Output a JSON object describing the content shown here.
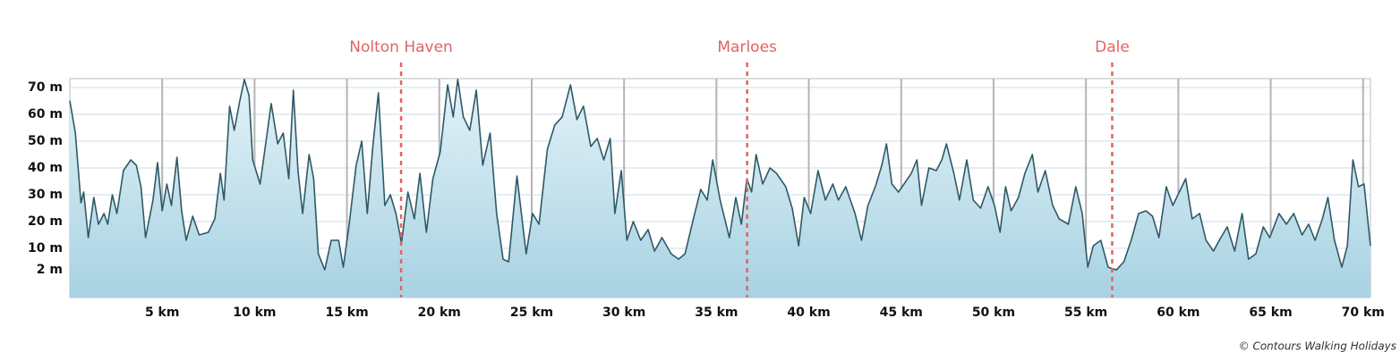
{
  "chart_data": {
    "type": "area",
    "series": [
      {
        "color": "#2f5966",
        "x": [
          0,
          0.3,
          0.6,
          0.75,
          1.0,
          1.3,
          1.55,
          1.85,
          2.05,
          2.3,
          2.55,
          2.9,
          3.3,
          3.6,
          3.85,
          4.1,
          4.5,
          4.75,
          5.0,
          5.25,
          5.5,
          5.8,
          6.05,
          6.3,
          6.65,
          7.0,
          7.5,
          7.85,
          8.15,
          8.35,
          8.65,
          8.9,
          9.2,
          9.45,
          9.7,
          9.9,
          10.3,
          10.6,
          10.9,
          11.25,
          11.55,
          11.85,
          12.1,
          12.35,
          12.6,
          12.95,
          13.2,
          13.45,
          13.8,
          14.15,
          14.55,
          14.8,
          15.1,
          15.5,
          15.8,
          16.1,
          16.4,
          16.7,
          17.05,
          17.35,
          17.65,
          17.95,
          18.3,
          18.65,
          18.95,
          19.3,
          19.65,
          20.05,
          20.45,
          20.75,
          21.0,
          21.3,
          21.65,
          22.0,
          22.35,
          22.75,
          23.1,
          23.45,
          23.75,
          24.2,
          24.7,
          25.05,
          25.4,
          25.85,
          26.25,
          26.65,
          27.1,
          27.45,
          27.8,
          28.2,
          28.55,
          28.9,
          29.25,
          29.5,
          29.85,
          30.15,
          30.5,
          30.9,
          31.3,
          31.65,
          32.05,
          32.55,
          32.95,
          33.3,
          33.75,
          34.15,
          34.5,
          34.8,
          35.2,
          35.7,
          36.05,
          36.35,
          36.65,
          36.9,
          37.15,
          37.5,
          37.9,
          38.25,
          38.75,
          39.1,
          39.45,
          39.75,
          40.1,
          40.5,
          40.9,
          41.3,
          41.6,
          42.0,
          42.5,
          42.85,
          43.2,
          43.6,
          43.95,
          44.2,
          44.5,
          44.85,
          45.15,
          45.55,
          45.85,
          46.1,
          46.5,
          46.9,
          47.2,
          47.45,
          47.85,
          48.15,
          48.55,
          48.9,
          49.3,
          49.7,
          50.05,
          50.35,
          50.65,
          50.95,
          51.35,
          51.7,
          52.1,
          52.4,
          52.8,
          53.2,
          53.55,
          54.05,
          54.45,
          54.8,
          55.1,
          55.4,
          55.8,
          56.2,
          56.65,
          57.05,
          57.45,
          57.85,
          58.25,
          58.6,
          58.95,
          59.35,
          59.7,
          60.05,
          60.4,
          60.75,
          61.15,
          61.5,
          61.9,
          62.3,
          62.65,
          63.05,
          63.45,
          63.8,
          64.2,
          64.6,
          64.95,
          65.45,
          65.85,
          66.25,
          66.7,
          67.05,
          67.4,
          67.8,
          68.1,
          68.45,
          68.85,
          69.15,
          69.45,
          69.75,
          70.05,
          70.4
        ],
        "values": [
          65,
          53,
          27,
          31,
          14,
          29,
          19,
          23,
          19,
          30,
          23,
          39,
          43,
          41,
          33,
          14,
          28,
          42,
          24,
          34,
          26,
          44,
          24,
          13,
          22,
          15,
          16,
          21,
          38,
          28,
          63,
          54,
          65,
          73,
          67,
          43,
          34,
          49,
          64,
          49,
          53,
          36,
          69,
          39,
          23,
          45,
          36,
          8,
          2,
          13,
          13,
          3,
          18,
          41,
          50,
          23,
          48,
          68,
          26,
          30,
          23,
          12,
          31,
          21,
          38,
          16,
          36,
          46,
          71,
          59,
          73,
          59,
          54,
          69,
          41,
          53,
          23,
          6,
          5,
          37,
          8,
          23,
          19,
          47,
          56,
          59,
          71,
          58,
          63,
          48,
          51,
          43,
          51,
          23,
          39,
          13,
          20,
          13,
          17,
          9,
          14,
          8,
          6,
          8,
          21,
          32,
          28,
          43,
          28,
          14,
          29,
          19,
          36,
          31,
          45,
          34,
          40,
          38,
          33,
          25,
          11,
          29,
          23,
          39,
          28,
          34,
          28,
          33,
          23,
          13,
          26,
          33,
          41,
          49,
          34,
          31,
          34,
          38,
          43,
          26,
          40,
          39,
          43,
          49,
          38,
          28,
          43,
          28,
          25,
          33,
          26,
          16,
          33,
          24,
          29,
          38,
          45,
          31,
          39,
          26,
          21,
          19,
          33,
          23,
          3,
          11,
          13,
          3,
          2,
          5,
          13,
          23,
          24,
          22,
          14,
          33,
          26,
          31,
          36,
          21,
          23,
          13,
          9,
          14,
          18,
          9,
          23,
          6,
          8,
          18,
          14,
          23,
          19,
          23,
          15,
          19,
          13,
          21,
          29,
          13,
          3,
          11,
          43,
          33,
          34,
          11
        ]
      }
    ],
    "xlim": [
      0,
      70.4
    ],
    "ylim": [
      -8.3,
      73.3
    ],
    "xticks": [
      {
        "value": 5,
        "label": "5 km"
      },
      {
        "value": 10,
        "label": "10 km"
      },
      {
        "value": 15,
        "label": "15 km"
      },
      {
        "value": 20,
        "label": "20 km"
      },
      {
        "value": 25,
        "label": "25 km"
      },
      {
        "value": 30,
        "label": "30 km"
      },
      {
        "value": 35,
        "label": "35 km"
      },
      {
        "value": 40,
        "label": "40 km"
      },
      {
        "value": 45,
        "label": "45 km"
      },
      {
        "value": 50,
        "label": "50 km"
      },
      {
        "value": 55,
        "label": "55 km"
      },
      {
        "value": 60,
        "label": "60 km"
      },
      {
        "value": 65,
        "label": "65 km"
      },
      {
        "value": 70,
        "label": "70 km"
      }
    ],
    "yticks": [
      {
        "value": 2,
        "label": "2 m"
      },
      {
        "value": 10,
        "label": "10 m"
      },
      {
        "value": 20,
        "label": "20 m"
      },
      {
        "value": 30,
        "label": "30 m"
      },
      {
        "value": 40,
        "label": "40 m"
      },
      {
        "value": 50,
        "label": "50 m"
      },
      {
        "value": 60,
        "label": "60 m"
      },
      {
        "value": 70,
        "label": "70 m"
      }
    ],
    "grid": true,
    "markers": [
      {
        "label": "Nolton Haven",
        "x": 17.93,
        "color": "#e06464"
      },
      {
        "label": "Marloes",
        "x": 36.66,
        "color": "#e06464"
      },
      {
        "label": "Dale",
        "x": 56.42,
        "color": "#e06464"
      }
    ],
    "credit": "© Contours Walking Holidays"
  }
}
